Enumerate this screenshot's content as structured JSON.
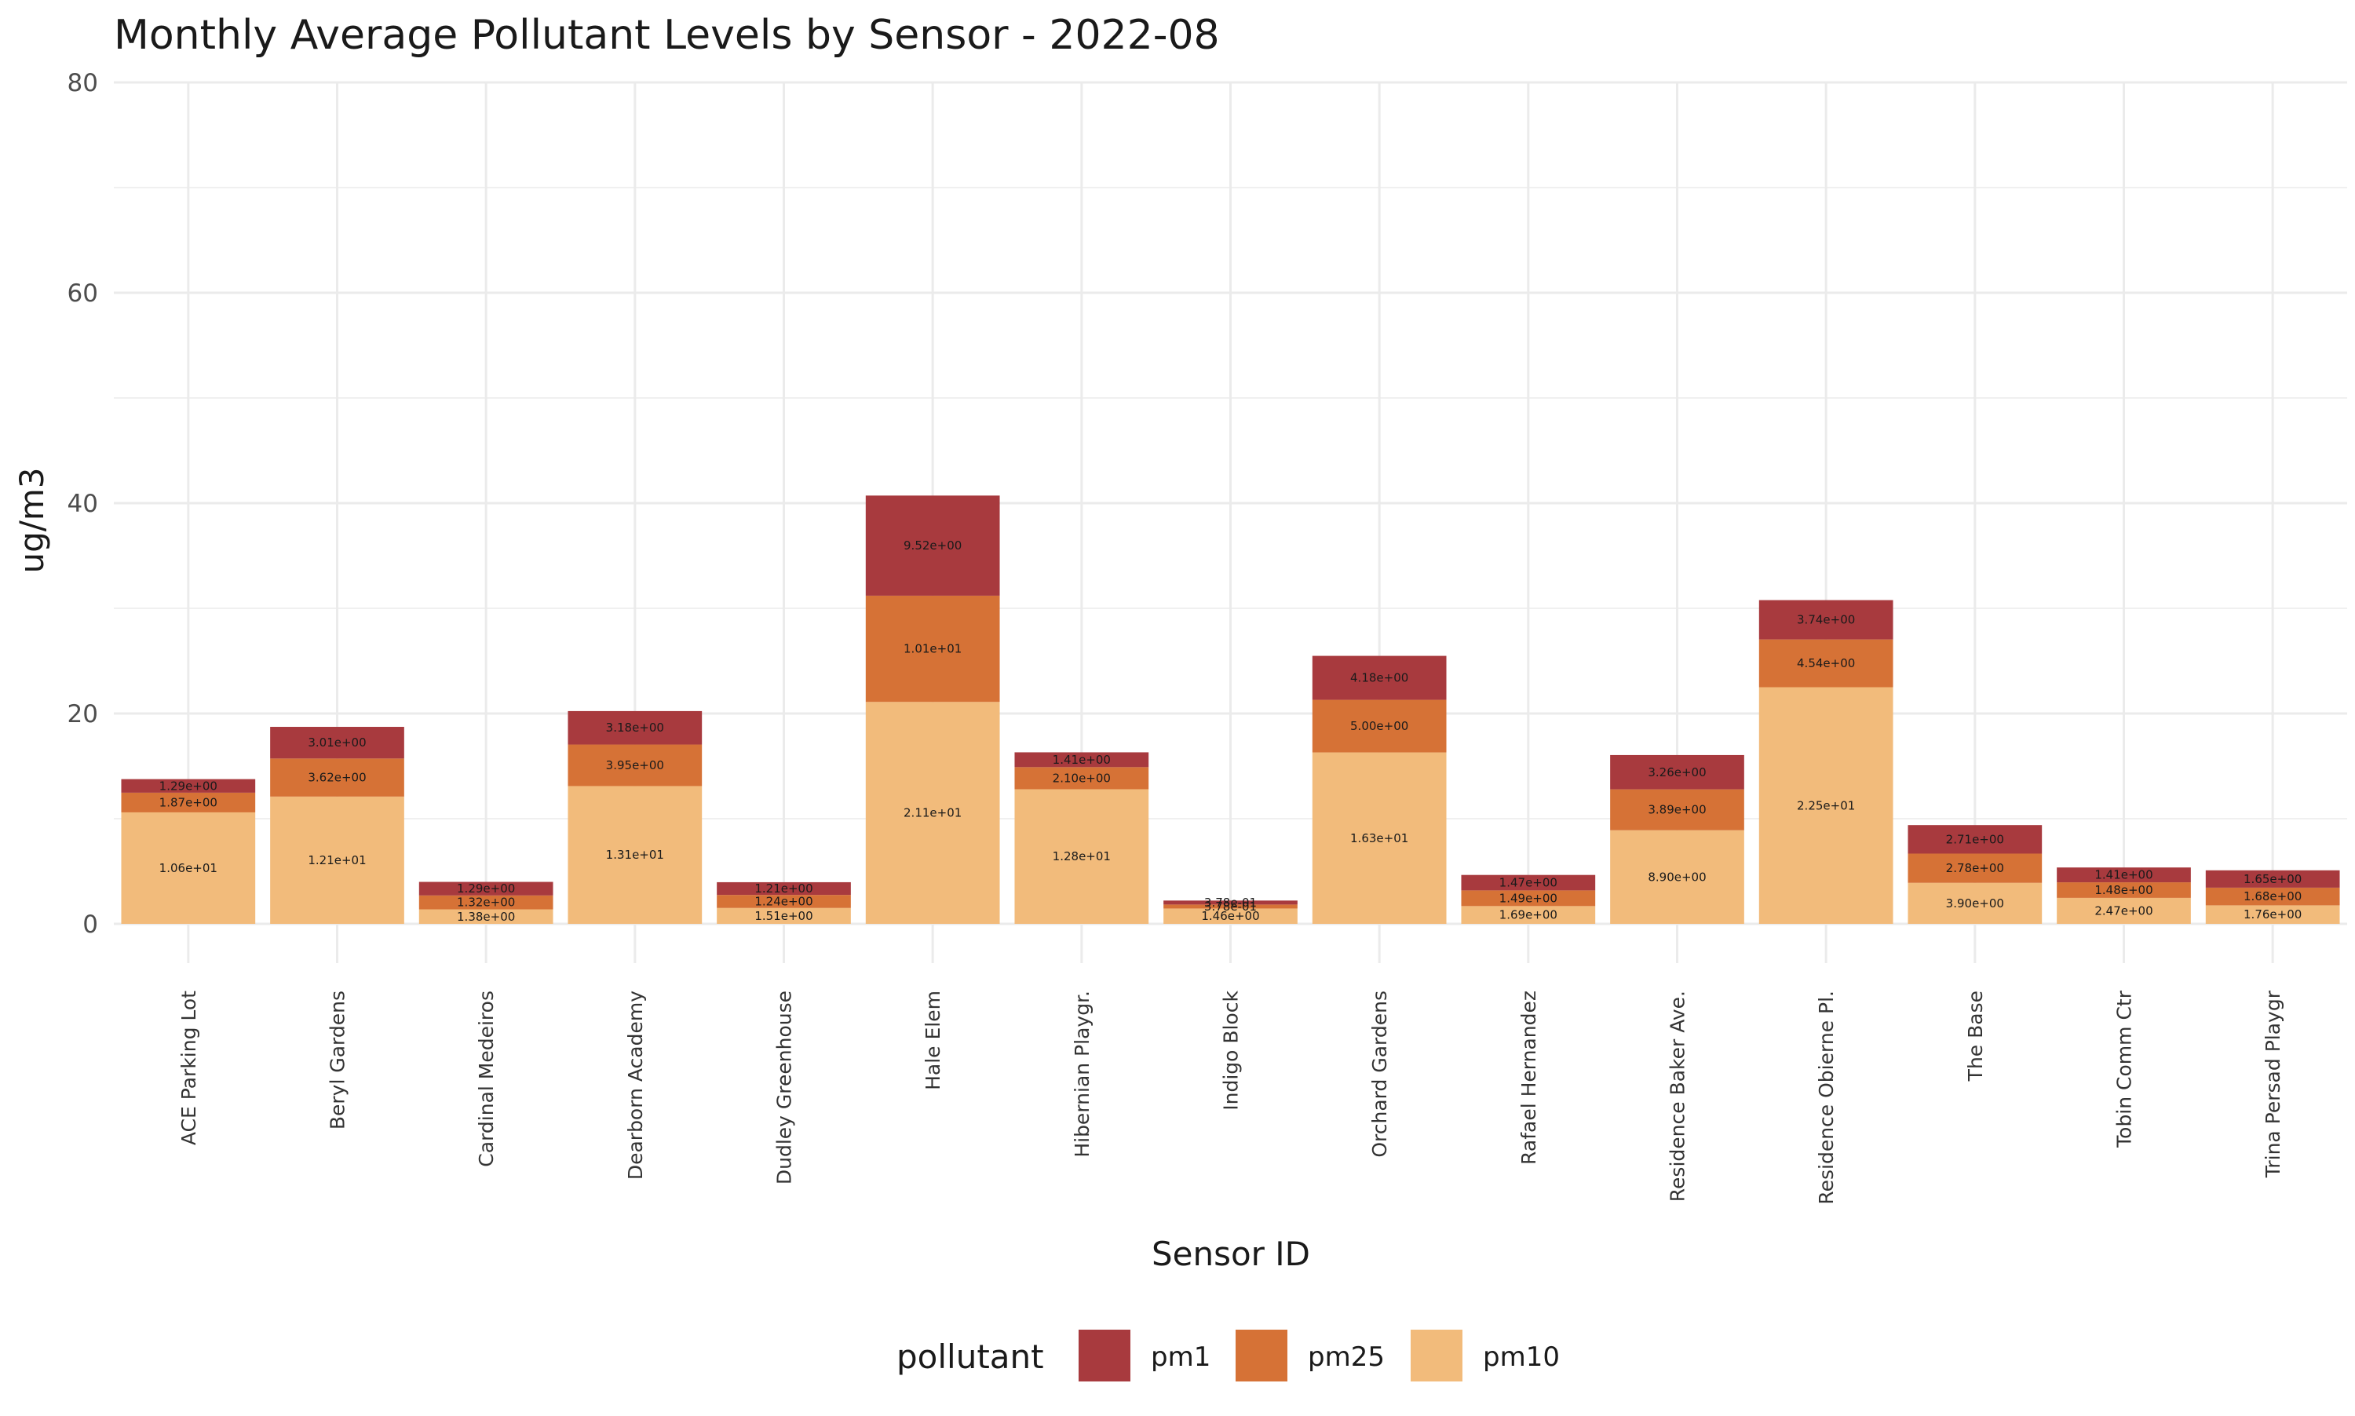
{
  "chart_data": {
    "type": "bar",
    "stacked": true,
    "title": "Monthly Average Pollutant Levels by Sensor - 2022-08",
    "xlabel": "Sensor ID",
    "ylabel": "ug/m3",
    "ylim": [
      0,
      80
    ],
    "yticks": [
      0,
      20,
      40,
      60,
      80
    ],
    "grid": true,
    "legend_position": "bottom",
    "legend_title": "pollutant",
    "categories": [
      "ACE Parking Lot",
      "Beryl Gardens",
      "Cardinal Medeiros",
      "Dearborn Academy",
      "Dudley Greenhouse",
      "Hale Elem",
      "Hibernian Playgr.",
      "Indigo Block",
      "Orchard Gardens",
      "Rafael Hernandez",
      "Residence Baker Ave.",
      "Residence Obierne Pl.",
      "The Base",
      "Tobin Comm Ctr",
      "Trina Persad Playgr"
    ],
    "series": [
      {
        "name": "pm10",
        "color": "#f2bb7b",
        "values": [
          10.6,
          12.1,
          1.38,
          13.1,
          1.51,
          21.1,
          12.8,
          1.46,
          16.3,
          1.69,
          8.9,
          22.5,
          3.9,
          2.47,
          1.76
        ],
        "labels": [
          "1.06e+01",
          "1.21e+01",
          "1.38e+00",
          "1.31e+01",
          "1.51e+00",
          "2.11e+01",
          "1.28e+01",
          "1.46e+00",
          "1.63e+01",
          "1.69e+00",
          "8.90e+00",
          "2.25e+01",
          "3.90e+00",
          "2.47e+00",
          "1.76e+00"
        ]
      },
      {
        "name": "pm25",
        "color": "#d67236",
        "values": [
          1.87,
          3.62,
          1.32,
          3.95,
          1.24,
          10.1,
          2.1,
          0.378,
          5.0,
          1.49,
          3.89,
          4.54,
          2.78,
          1.48,
          1.68
        ],
        "labels": [
          "1.87e+00",
          "3.62e+00",
          "1.32e+00",
          "3.95e+00",
          "1.24e+00",
          "1.01e+01",
          "2.10e+00",
          "3.78e-01",
          "5.00e+00",
          "1.49e+00",
          "3.89e+00",
          "4.54e+00",
          "2.78e+00",
          "1.48e+00",
          "1.68e+00"
        ]
      },
      {
        "name": "pm1",
        "color": "#a83a3e",
        "values": [
          1.29,
          3.01,
          1.29,
          3.18,
          1.21,
          9.52,
          1.41,
          0.378,
          4.18,
          1.47,
          3.26,
          3.74,
          2.71,
          1.41,
          1.65
        ],
        "labels": [
          "1.29e+00",
          "3.01e+00",
          "1.29e+00",
          "3.18e+00",
          "1.21e+00",
          "9.52e+00",
          "1.41e+00",
          "3.78e-01",
          "4.18e+00",
          "1.47e+00",
          "3.26e+00",
          "3.74e+00",
          "2.71e+00",
          "1.41e+00",
          "1.65e+00"
        ]
      }
    ],
    "legend_order": [
      "pm1",
      "pm25",
      "pm10"
    ]
  }
}
